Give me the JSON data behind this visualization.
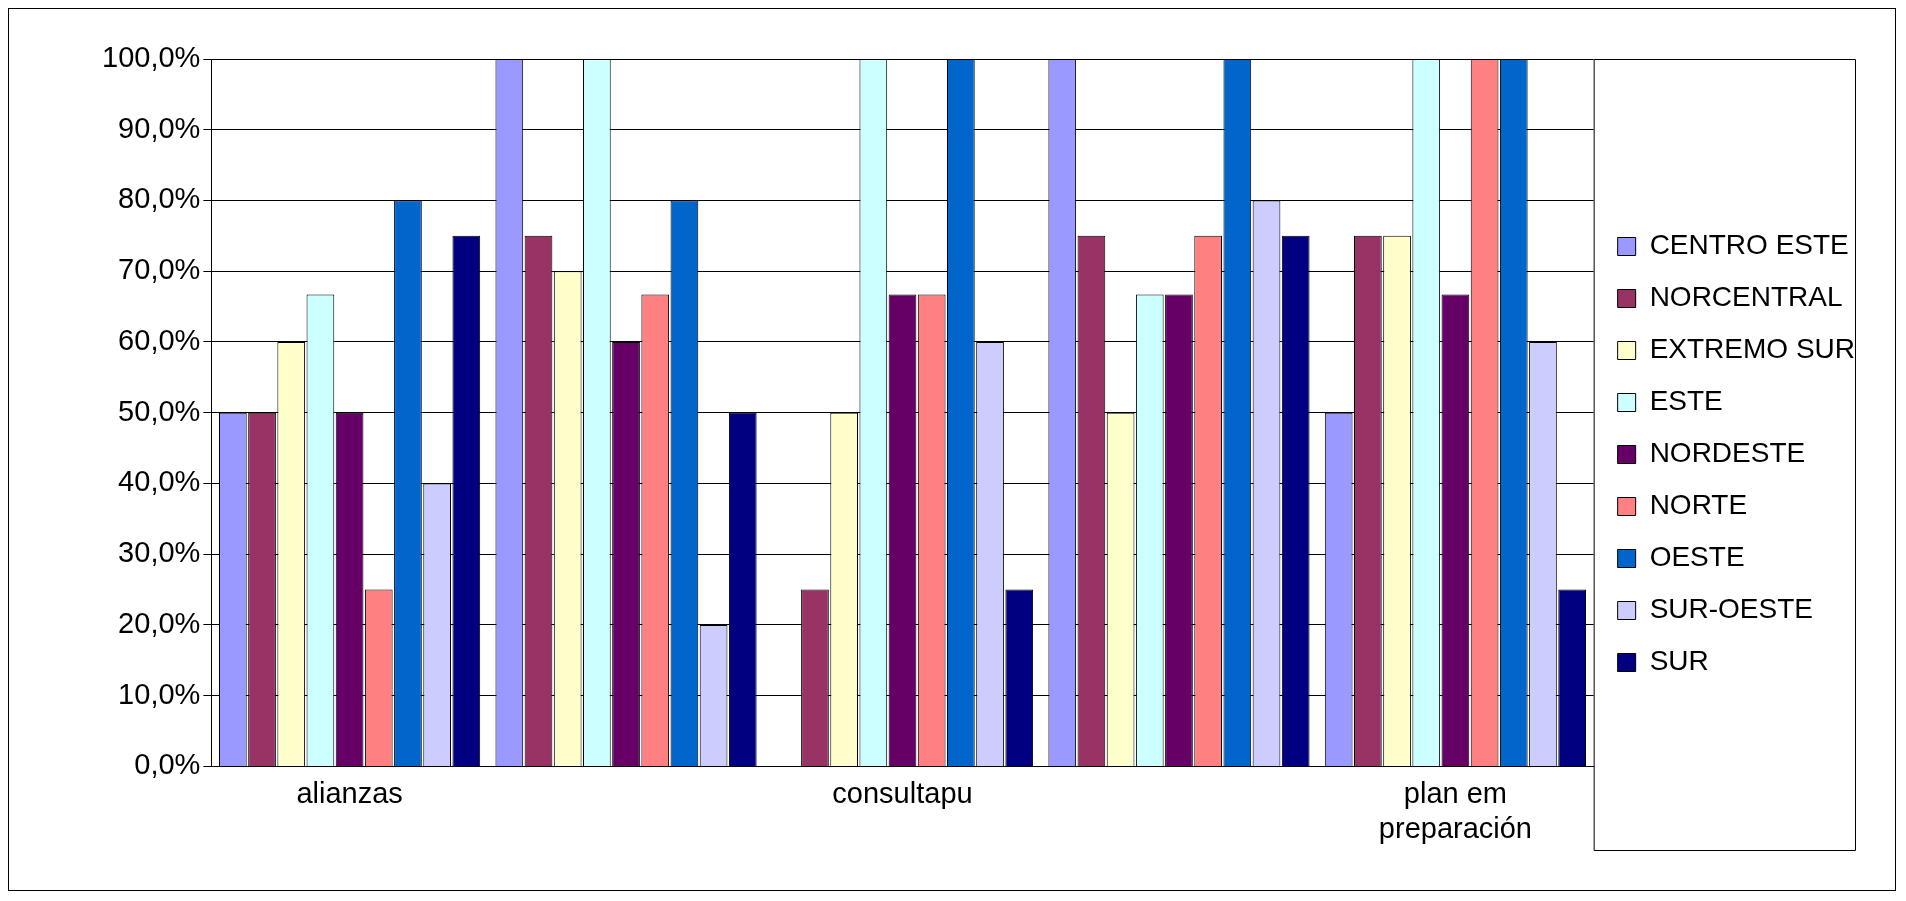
{
  "chart_data": {
    "type": "bar",
    "categories": [
      "alianzas",
      null,
      "consultapu",
      null,
      "plan em preparación"
    ],
    "series": [
      {
        "name": "CENTRO ESTE",
        "color": "#9999ff",
        "values": [
          50,
          100,
          0,
          100,
          50
        ]
      },
      {
        "name": "NORCENTRAL",
        "color": "#993366",
        "values": [
          50,
          75,
          25,
          75,
          75
        ]
      },
      {
        "name": "EXTREMO SUR",
        "color": "#ffffcc",
        "values": [
          60,
          70,
          50,
          50,
          75
        ]
      },
      {
        "name": "ESTE",
        "color": "#ccffff",
        "values": [
          66.7,
          100,
          100,
          66.7,
          100
        ]
      },
      {
        "name": "NORDESTE",
        "color": "#660066",
        "values": [
          50,
          60,
          66.7,
          66.7,
          66.7
        ]
      },
      {
        "name": "NORTE",
        "color": "#ff8080",
        "values": [
          25,
          66.7,
          66.7,
          75,
          100
        ]
      },
      {
        "name": "OESTE",
        "color": "#0066cc",
        "values": [
          80,
          80,
          100,
          100,
          100
        ]
      },
      {
        "name": "SUR-OESTE",
        "color": "#ccccff",
        "values": [
          40,
          20,
          60,
          80,
          60
        ]
      },
      {
        "name": "SUR",
        "color": "#000080",
        "values": [
          75,
          50,
          25,
          75,
          25
        ]
      }
    ],
    "ylim": [
      0,
      100
    ],
    "yticks": [
      {
        "value": 0,
        "label": "0,0%"
      },
      {
        "value": 10,
        "label": "10,0%"
      },
      {
        "value": 20,
        "label": "20,0%"
      },
      {
        "value": 30,
        "label": "30,0%"
      },
      {
        "value": 40,
        "label": "40,0%"
      },
      {
        "value": 50,
        "label": "50,0%"
      },
      {
        "value": 60,
        "label": "60,0%"
      },
      {
        "value": 70,
        "label": "70,0%"
      },
      {
        "value": 80,
        "label": "80,0%"
      },
      {
        "value": 90,
        "label": "90,0%"
      },
      {
        "value": 100,
        "label": "100,0%"
      }
    ],
    "grid": "y",
    "legend": "right"
  }
}
